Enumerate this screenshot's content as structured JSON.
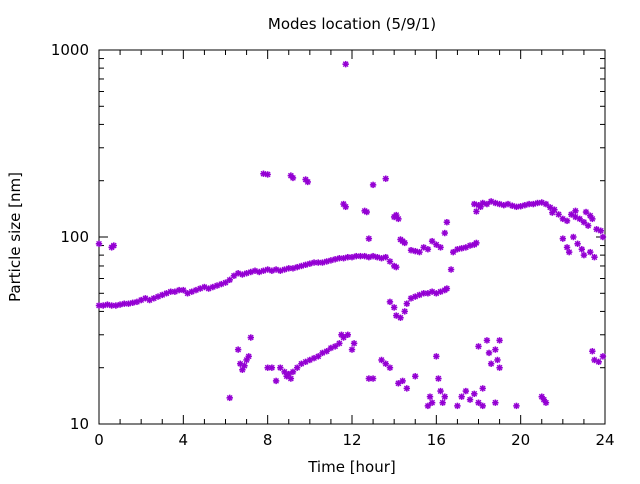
{
  "chart_data": {
    "type": "scatter",
    "title": "Modes location (5/9/1)",
    "xlabel": "Time [hour]",
    "ylabel": "Particle size [nm]",
    "xlim": [
      0,
      24
    ],
    "ylim": [
      10,
      1000
    ],
    "yscale": "log",
    "grid": false,
    "legend": "none",
    "marker_color": "#9400D3",
    "x_ticks": [
      {
        "value": 0,
        "label": "0"
      },
      {
        "value": 4,
        "label": "4"
      },
      {
        "value": 8,
        "label": "8"
      },
      {
        "value": 12,
        "label": "12"
      },
      {
        "value": 16,
        "label": "16"
      },
      {
        "value": 20,
        "label": "20"
      },
      {
        "value": 24,
        "label": "24"
      }
    ],
    "y_ticks": [
      {
        "value": 10,
        "label": "10"
      },
      {
        "value": 100,
        "label": "100"
      },
      {
        "value": 1000,
        "label": "1000"
      }
    ],
    "series": [
      {
        "points": [
          [
            0.0,
            43
          ],
          [
            0.2,
            43
          ],
          [
            0.4,
            43.5
          ],
          [
            0.6,
            43
          ],
          [
            0.8,
            43
          ],
          [
            1.0,
            43.5
          ],
          [
            1.2,
            44
          ],
          [
            1.4,
            44
          ],
          [
            1.6,
            44.5
          ],
          [
            1.8,
            45
          ],
          [
            2.0,
            46
          ],
          [
            2.2,
            47
          ],
          [
            2.4,
            46
          ],
          [
            2.6,
            47
          ],
          [
            2.8,
            48
          ],
          [
            3.0,
            49
          ],
          [
            3.2,
            50
          ],
          [
            3.4,
            51
          ],
          [
            3.6,
            51
          ],
          [
            3.8,
            52
          ],
          [
            4.0,
            52
          ],
          [
            4.2,
            50
          ],
          [
            4.4,
            51
          ],
          [
            4.6,
            52
          ],
          [
            4.8,
            53
          ],
          [
            5.0,
            54
          ],
          [
            5.2,
            53
          ],
          [
            5.4,
            54
          ],
          [
            5.6,
            55
          ],
          [
            5.8,
            56
          ],
          [
            6.0,
            57
          ],
          [
            6.2,
            59
          ],
          [
            6.4,
            62
          ],
          [
            6.6,
            64
          ],
          [
            6.8,
            63
          ],
          [
            7.0,
            64
          ],
          [
            7.2,
            65
          ],
          [
            7.4,
            66
          ],
          [
            7.6,
            65
          ],
          [
            7.8,
            66
          ],
          [
            8.0,
            67
          ],
          [
            8.2,
            66
          ],
          [
            8.4,
            67
          ],
          [
            8.6,
            66
          ],
          [
            8.8,
            67
          ],
          [
            9.0,
            68
          ],
          [
            9.2,
            68
          ],
          [
            9.4,
            69
          ],
          [
            9.6,
            70
          ],
          [
            9.8,
            71
          ],
          [
            10.0,
            72
          ],
          [
            10.2,
            73
          ],
          [
            10.4,
            73
          ],
          [
            10.6,
            73
          ],
          [
            10.8,
            74
          ],
          [
            11.0,
            75
          ],
          [
            11.2,
            76
          ],
          [
            11.4,
            77
          ],
          [
            11.6,
            77
          ],
          [
            11.8,
            78
          ],
          [
            12.0,
            78
          ],
          [
            12.2,
            79
          ],
          [
            12.4,
            79
          ],
          [
            12.6,
            79
          ],
          [
            12.8,
            78
          ],
          [
            13.0,
            79
          ],
          [
            13.2,
            78
          ],
          [
            13.4,
            77
          ],
          [
            13.6,
            78
          ],
          [
            13.8,
            74
          ],
          [
            14.0,
            70
          ],
          [
            14.1,
            69
          ],
          [
            0.0,
            92
          ],
          [
            0.6,
            88
          ],
          [
            0.7,
            90
          ],
          [
            7.8,
            218
          ],
          [
            8.0,
            216
          ],
          [
            9.1,
            213
          ],
          [
            9.2,
            207
          ],
          [
            9.8,
            203
          ],
          [
            9.9,
            197
          ],
          [
            11.6,
            150
          ],
          [
            11.7,
            145
          ],
          [
            11.7,
            840
          ],
          [
            12.6,
            138
          ],
          [
            12.7,
            136
          ],
          [
            13.0,
            190
          ],
          [
            13.6,
            205
          ],
          [
            14.0,
            128
          ],
          [
            14.1,
            131
          ],
          [
            14.2,
            125
          ],
          [
            14.3,
            97
          ],
          [
            14.4,
            95
          ],
          [
            14.5,
            93
          ],
          [
            12.8,
            98
          ],
          [
            13.8,
            45
          ],
          [
            14.0,
            42
          ],
          [
            14.1,
            38
          ],
          [
            14.3,
            37
          ],
          [
            14.5,
            40
          ],
          [
            14.6,
            44
          ],
          [
            14.8,
            47
          ],
          [
            15.0,
            48
          ],
          [
            15.2,
            49
          ],
          [
            15.4,
            50
          ],
          [
            15.6,
            50
          ],
          [
            15.8,
            51
          ],
          [
            16.0,
            50
          ],
          [
            16.2,
            51
          ],
          [
            16.4,
            52
          ],
          [
            16.5,
            53
          ],
          [
            16.7,
            67
          ],
          [
            14.8,
            85
          ],
          [
            15.0,
            84
          ],
          [
            15.2,
            83
          ],
          [
            15.4,
            88
          ],
          [
            15.6,
            86
          ],
          [
            15.8,
            95
          ],
          [
            16.0,
            91
          ],
          [
            16.2,
            88
          ],
          [
            16.4,
            105
          ],
          [
            16.5,
            120
          ],
          [
            16.8,
            83
          ],
          [
            17.0,
            86
          ],
          [
            17.2,
            87
          ],
          [
            17.4,
            88
          ],
          [
            17.6,
            90
          ],
          [
            17.8,
            91
          ],
          [
            17.9,
            93
          ],
          [
            17.8,
            150
          ],
          [
            17.9,
            137
          ],
          [
            18.0,
            148
          ],
          [
            18.1,
            145
          ],
          [
            18.2,
            152
          ],
          [
            18.4,
            150
          ],
          [
            18.6,
            155
          ],
          [
            18.8,
            152
          ],
          [
            19.0,
            150
          ],
          [
            19.2,
            148
          ],
          [
            19.4,
            150
          ],
          [
            19.6,
            147
          ],
          [
            19.8,
            145
          ],
          [
            20.0,
            146
          ],
          [
            20.2,
            148
          ],
          [
            20.4,
            150
          ],
          [
            20.6,
            150
          ],
          [
            20.8,
            152
          ],
          [
            21.0,
            153
          ],
          [
            21.2,
            150
          ],
          [
            21.4,
            144
          ],
          [
            21.6,
            140
          ],
          [
            21.8,
            132
          ],
          [
            22.0,
            125
          ],
          [
            22.2,
            122
          ],
          [
            22.4,
            132
          ],
          [
            22.6,
            128
          ],
          [
            22.8,
            125
          ],
          [
            23.0,
            120
          ],
          [
            23.2,
            115
          ],
          [
            23.4,
            125
          ],
          [
            23.6,
            110
          ],
          [
            23.8,
            108
          ],
          [
            21.5,
            135
          ],
          [
            22.6,
            138
          ],
          [
            23.1,
            136
          ],
          [
            23.3,
            130
          ],
          [
            22.0,
            98
          ],
          [
            22.2,
            88
          ],
          [
            22.3,
            83
          ],
          [
            22.5,
            100
          ],
          [
            22.7,
            92
          ],
          [
            22.9,
            86
          ],
          [
            23.0,
            80
          ],
          [
            23.3,
            83
          ],
          [
            23.5,
            78
          ],
          [
            23.9,
            100
          ],
          [
            6.2,
            13.8
          ],
          [
            6.6,
            25
          ],
          [
            6.7,
            21
          ],
          [
            6.8,
            19.5
          ],
          [
            6.9,
            20.5
          ],
          [
            7.0,
            22
          ],
          [
            7.1,
            23
          ],
          [
            7.2,
            29
          ],
          [
            8.0,
            20
          ],
          [
            8.2,
            20
          ],
          [
            8.4,
            17
          ],
          [
            8.6,
            20
          ],
          [
            8.8,
            19
          ],
          [
            8.9,
            18
          ],
          [
            9.0,
            18.5
          ],
          [
            9.1,
            17.5
          ],
          [
            9.2,
            19
          ],
          [
            9.4,
            20
          ],
          [
            9.6,
            21
          ],
          [
            9.8,
            21.5
          ],
          [
            10.0,
            22
          ],
          [
            10.2,
            22.5
          ],
          [
            10.4,
            23
          ],
          [
            10.6,
            24
          ],
          [
            10.8,
            24.5
          ],
          [
            11.0,
            25.5
          ],
          [
            11.2,
            26
          ],
          [
            11.4,
            27
          ],
          [
            11.5,
            30
          ],
          [
            11.6,
            29
          ],
          [
            11.8,
            30
          ],
          [
            12.0,
            25
          ],
          [
            12.1,
            27
          ],
          [
            12.8,
            17.5
          ],
          [
            13.0,
            17.5
          ],
          [
            13.4,
            22
          ],
          [
            13.6,
            21
          ],
          [
            13.8,
            20
          ],
          [
            14.2,
            16.5
          ],
          [
            14.4,
            17
          ],
          [
            14.6,
            15.5
          ],
          [
            15.0,
            18
          ],
          [
            15.6,
            12.5
          ],
          [
            15.7,
            14
          ],
          [
            15.8,
            13
          ],
          [
            16.0,
            23
          ],
          [
            16.1,
            17.5
          ],
          [
            16.2,
            15
          ],
          [
            16.3,
            13
          ],
          [
            16.4,
            14
          ],
          [
            17.0,
            12.5
          ],
          [
            17.2,
            14
          ],
          [
            17.4,
            15
          ],
          [
            17.6,
            13.5
          ],
          [
            17.8,
            14.5
          ],
          [
            18.0,
            26
          ],
          [
            18.0,
            13
          ],
          [
            18.2,
            12.5
          ],
          [
            18.2,
            15.5
          ],
          [
            18.4,
            28
          ],
          [
            18.5,
            24
          ],
          [
            18.6,
            21
          ],
          [
            18.8,
            25
          ],
          [
            18.9,
            22
          ],
          [
            19.0,
            28
          ],
          [
            19.0,
            20
          ],
          [
            18.8,
            13
          ],
          [
            19.8,
            12.5
          ],
          [
            21.0,
            14
          ],
          [
            21.1,
            13.5
          ],
          [
            21.2,
            13
          ],
          [
            23.4,
            24.5
          ],
          [
            23.5,
            22
          ],
          [
            23.7,
            21.5
          ],
          [
            23.9,
            23
          ]
        ]
      }
    ]
  }
}
